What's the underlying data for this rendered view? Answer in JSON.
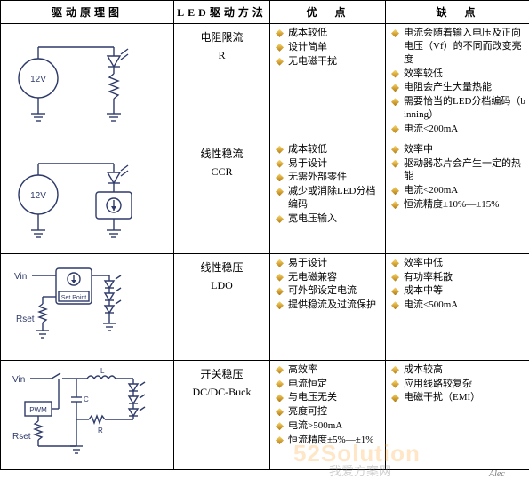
{
  "headers": {
    "diagram": "驱动原理图",
    "method": "LED驱动方法",
    "pros": "优　点",
    "cons": "缺　点"
  },
  "rows": [
    {
      "method_title": "电阻限流",
      "method_sub": "R",
      "pros": [
        "成本较低",
        "设计简单",
        "无电磁干扰"
      ],
      "cons": [
        "电流会随着输入电压及正向电压（Vf）的不同而改变亮度",
        "效率较低",
        "电阻会产生大量热能",
        "需要恰当的LED分档编码（binning）",
        "电流<200mA"
      ]
    },
    {
      "method_title": "线性稳流",
      "method_sub": "CCR",
      "pros": [
        "成本较低",
        "易于设计",
        "无需外部零件",
        "减少或消除LED分档编码",
        "宽电压输入"
      ],
      "cons": [
        "效率中",
        "驱动器芯片会产生一定的热能",
        "电流<200mA",
        "恒流精度±10%—±15%"
      ]
    },
    {
      "method_title": "线性稳压",
      "method_sub": "LDO",
      "pros": [
        "易于设计",
        "无电磁兼容",
        "可外部设定电流",
        "提供稳流及过流保护"
      ],
      "cons": [
        "效率中低",
        "有功率耗散",
        "成本中等",
        "电流<500mA"
      ]
    },
    {
      "method_title": "开关稳压",
      "method_sub": "DC/DC-Buck",
      "pros": [
        "高效率",
        "电流恒定",
        "与电压无关",
        "亮度可控",
        "电流>500mA",
        "恒流精度±5%—±1%"
      ],
      "cons": [
        "成本较高",
        "应用线路较复杂",
        "电磁干扰（EMI）"
      ]
    }
  ],
  "watermarks": {
    "brand": "52Solution",
    "site": "我爱方案网",
    "alec": "Alec"
  },
  "colors": {
    "border": "#000000",
    "circuit": "#2e3a6a",
    "bullet_top": "#f7d774",
    "bullet_bot": "#b07c18"
  }
}
